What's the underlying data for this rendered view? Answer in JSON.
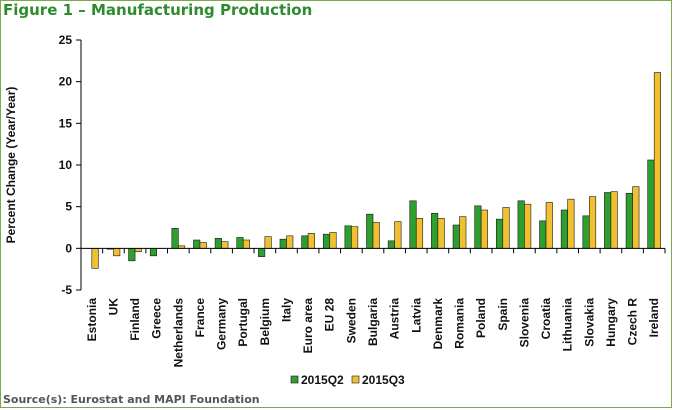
{
  "figure": {
    "title": "Figure 1 – Manufacturing Production",
    "source": "Source(s): Eurostat and MAPI Foundation"
  },
  "colors": {
    "series1": "#2e9e2e",
    "series2": "#f0c030",
    "frame": "#7aa84a",
    "title": "#2e8b2e"
  },
  "chart_data": {
    "type": "bar",
    "title": "",
    "xlabel": "",
    "ylabel": "Percent Change (Year/Year)",
    "ylim": [
      -5,
      25
    ],
    "yticks": [
      25,
      20,
      15,
      10,
      5,
      0,
      -5
    ],
    "grid": false,
    "legend_position": "bottom",
    "categories": [
      "Estonia",
      "UK",
      "Finland",
      "Greece",
      "Netherlands",
      "France",
      "Germany",
      "Portugal",
      "Belgium",
      "Italy",
      "Euro area",
      "EU 28",
      "Sweden",
      "Bulgaria",
      "Austria",
      "Latvia",
      "Denmark",
      "Romania",
      "Poland",
      "Spain",
      "Slovenia",
      "Croatia",
      "Lithuania",
      "Slovakia",
      "Hungary",
      "Czech R",
      "Ireland"
    ],
    "series": [
      {
        "name": "2015Q2",
        "color": "#2e9e2e",
        "values": [
          0.0,
          -0.1,
          -1.5,
          -0.9,
          2.4,
          1.0,
          1.2,
          1.3,
          -1.0,
          1.1,
          1.5,
          1.7,
          2.7,
          4.1,
          0.9,
          5.7,
          4.2,
          2.8,
          5.1,
          3.5,
          5.7,
          3.3,
          4.6,
          3.9,
          6.7,
          6.6,
          10.6
        ]
      },
      {
        "name": "2015Q3",
        "color": "#f0c030",
        "values": [
          -2.4,
          -0.9,
          -0.4,
          0.0,
          0.3,
          0.7,
          0.8,
          1.0,
          1.4,
          1.5,
          1.8,
          1.9,
          2.6,
          3.1,
          3.2,
          3.6,
          3.6,
          3.8,
          4.6,
          4.9,
          5.3,
          5.5,
          5.9,
          6.2,
          6.8,
          7.4,
          21.1
        ]
      }
    ]
  }
}
